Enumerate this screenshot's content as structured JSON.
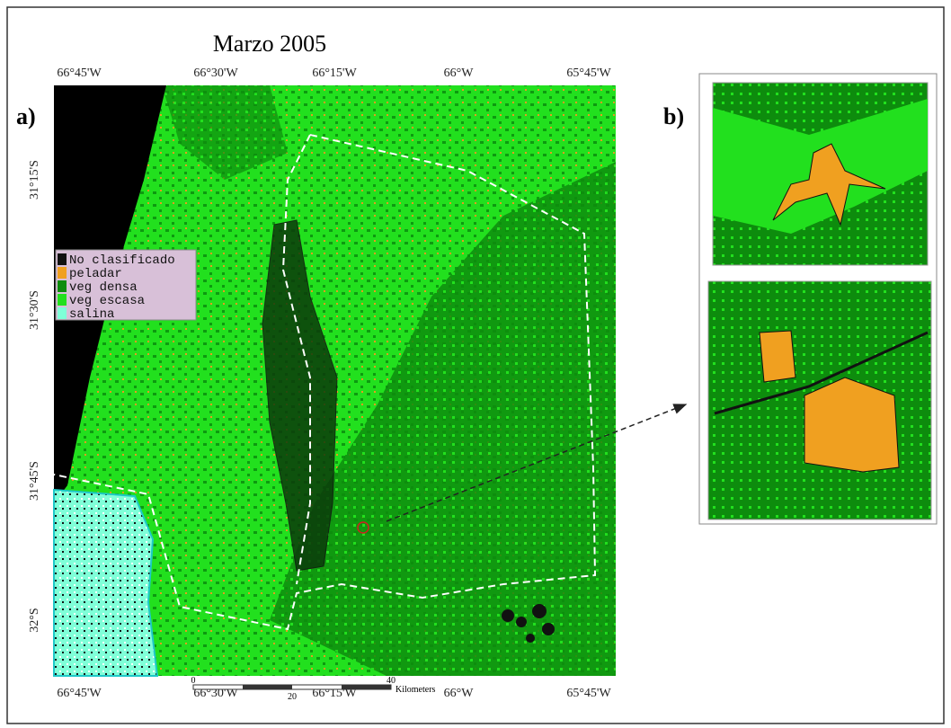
{
  "title": "Marzo 2005",
  "panel_a": {
    "label": "a)",
    "top_longitudes": [
      "66°45'W",
      "66°30'W",
      "66°15'W",
      "66°W",
      "65°45'W"
    ],
    "bottom_longitudes": [
      "66°45'W",
      "66°30'W",
      "66°15'W",
      "66°W",
      "65°45'W"
    ],
    "latitudes": [
      "31°15'S",
      "31°30'S",
      "31°45'S",
      "32°S"
    ],
    "legend": [
      "No clasificado",
      "peladar",
      "veg densa",
      "veg escasa",
      "salina"
    ],
    "scale_bar": {
      "ticks": [
        "0",
        "20",
        "40"
      ],
      "unit": "Kilometers"
    }
  },
  "panel_b": {
    "label": "b)"
  }
}
